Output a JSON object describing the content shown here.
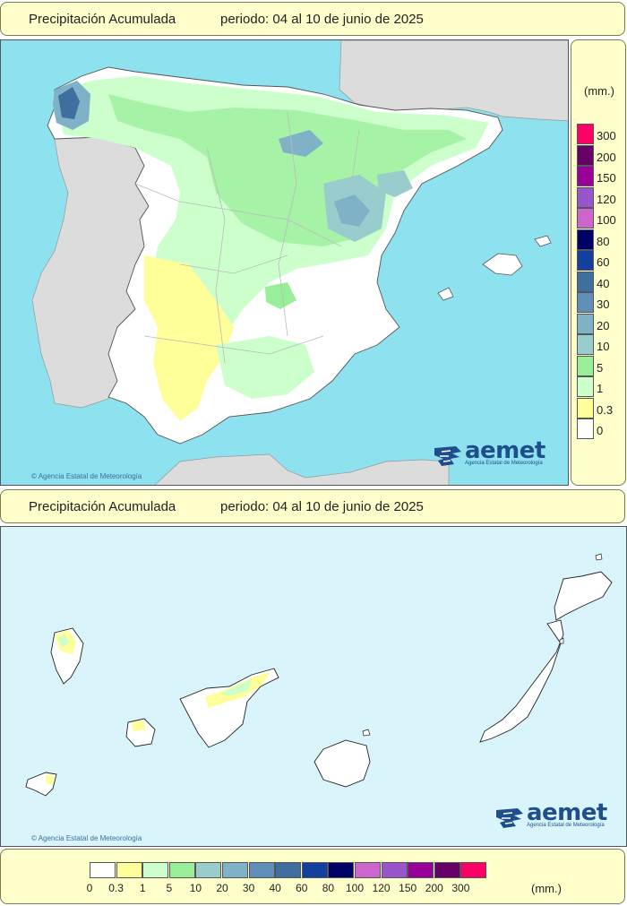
{
  "top_title": {
    "left": "Precipitación Acumulada",
    "right": "periodo: 04 al 10 de junio de 2025"
  },
  "bottom_title": {
    "left": "Precipitación Acumulada",
    "right": "periodo: 04 al 10 de junio de 2025"
  },
  "legend": {
    "unit": "(mm.)",
    "classes": [
      {
        "label": "0",
        "color": "#ffffff"
      },
      {
        "label": "0.3",
        "color": "#ffff99"
      },
      {
        "label": "1",
        "color": "#ccffcc"
      },
      {
        "label": "5",
        "color": "#99ee99"
      },
      {
        "label": "10",
        "color": "#99cccc"
      },
      {
        "label": "20",
        "color": "#7fb2c6"
      },
      {
        "label": "30",
        "color": "#5f8fb8"
      },
      {
        "label": "40",
        "color": "#3f6f9f"
      },
      {
        "label": "60",
        "color": "#133f9f"
      },
      {
        "label": "80",
        "color": "#000066"
      },
      {
        "label": "100",
        "color": "#cc66cc"
      },
      {
        "label": "120",
        "color": "#9955cc"
      },
      {
        "label": "150",
        "color": "#990099"
      },
      {
        "label": "200",
        "color": "#660066"
      },
      {
        "label": "300",
        "color": "#ff0066"
      }
    ]
  },
  "credits": {
    "copyright_top": "Agencia Estatal de Meteorología",
    "copyright_bottom": "Agencia Estatal de Meteorología",
    "logo_word": "aemet",
    "logo_sub": "Agencia Estatal de Meteorología"
  },
  "colors": {
    "sea": "#8ee1ee",
    "sea_canary": "#d9f5fb",
    "foreign_land": "#dcdcdc",
    "panel": "#ffffcc"
  }
}
